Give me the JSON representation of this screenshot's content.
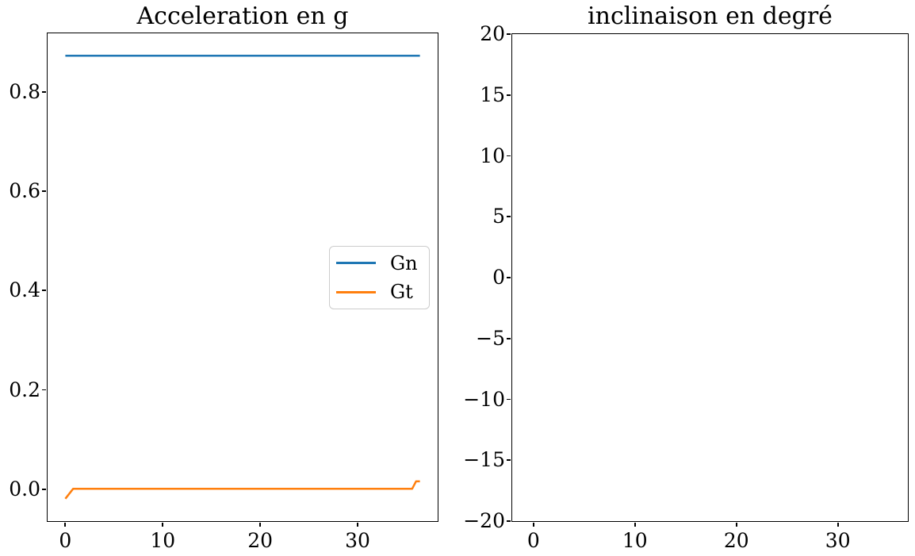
{
  "figure": {
    "background": "#ffffff",
    "text_color": "#000000"
  },
  "legend": {
    "visible": true,
    "position": "center right of left plot",
    "entries": [
      {
        "label": "Gn",
        "color": "#1f77b4"
      },
      {
        "label": "Gt",
        "color": "#ff7f0e"
      }
    ]
  },
  "chart_data": [
    {
      "type": "line",
      "title": "Acceleration en g",
      "xlabel": "",
      "ylabel": "",
      "xlim": [
        -1.82,
        38.22
      ],
      "ylim": [
        -0.064,
        0.918
      ],
      "xticks": [
        0,
        10,
        20,
        30
      ],
      "xtick_labels": [
        "0",
        "10",
        "20",
        "30"
      ],
      "yticks": [
        0.0,
        0.2,
        0.4,
        0.6,
        0.8
      ],
      "ytick_labels": [
        "0.0",
        "0.2",
        "0.4",
        "0.6",
        "0.8"
      ],
      "grid": false,
      "legend_position": "center right",
      "series": [
        {
          "name": "Gn",
          "color": "#1f77b4",
          "x": [
            0,
            36.4
          ],
          "y": [
            0.873,
            0.873
          ]
        },
        {
          "name": "Gt",
          "color": "#ff7f0e",
          "x": [
            0,
            0.8,
            35.6,
            36.0,
            36.4
          ],
          "y": [
            -0.019,
            0.001,
            0.001,
            0.016,
            0.016
          ]
        }
      ]
    },
    {
      "type": "line",
      "title": "inclinaison en degré",
      "xlabel": "",
      "ylabel": "",
      "xlim": [
        -2.1,
        36.9
      ],
      "ylim": [
        -20,
        20
      ],
      "xticks": [
        0,
        10,
        20,
        30
      ],
      "xtick_labels": [
        "0",
        "10",
        "20",
        "30"
      ],
      "yticks": [
        20,
        15,
        10,
        5,
        0,
        -5,
        -10,
        -15,
        -20
      ],
      "ytick_labels": [
        "20",
        "15",
        "10",
        "5",
        "0",
        "−5",
        "−10",
        "−15",
        "−20"
      ],
      "grid": false,
      "legend_position": "none",
      "series": []
    }
  ]
}
